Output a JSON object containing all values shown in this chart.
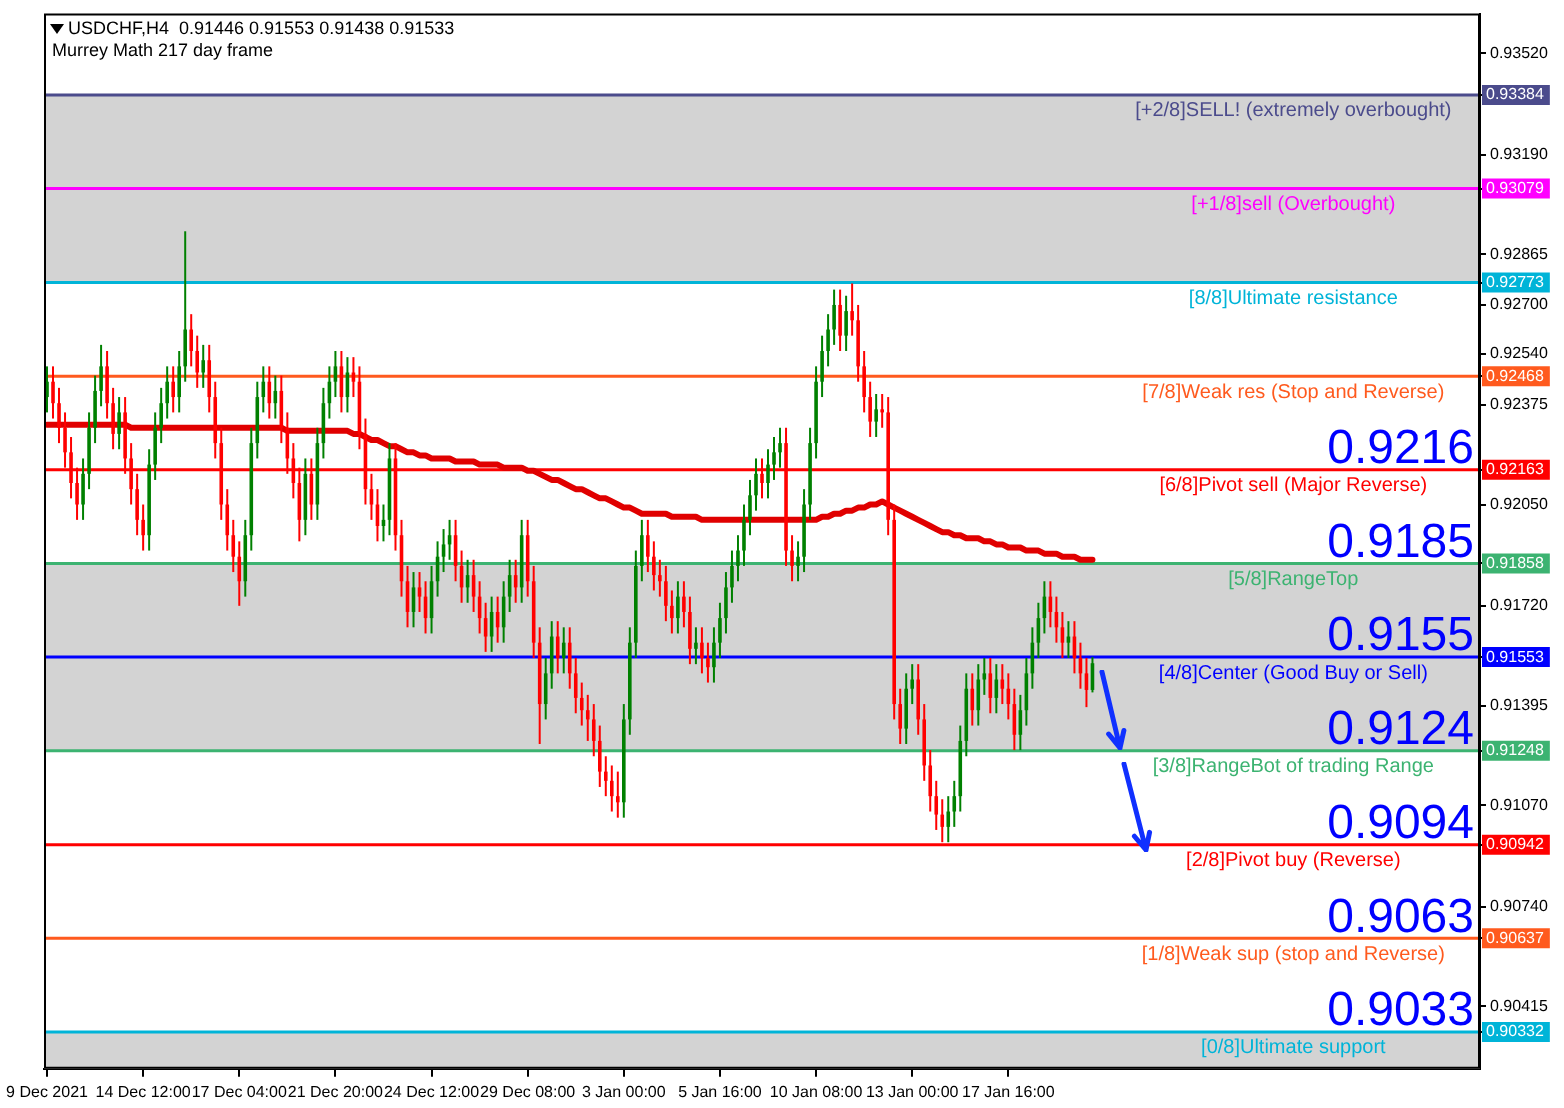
{
  "chart_data": {
    "type": "candlestick",
    "title": "USDCHF,H4  0.91446 0.91553 0.91438 0.91533",
    "subtitle": "Murrey Math 217 day frame",
    "categories": [
      "9 Dec 2021",
      null,
      null,
      null,
      null,
      null,
      null,
      null,
      null,
      null,
      null,
      null,
      null,
      null,
      null,
      null,
      "14 Dec 12:00",
      null,
      null,
      null,
      null,
      null,
      null,
      null,
      null,
      null,
      null,
      null,
      null,
      null,
      null,
      null,
      "17 Dec 04:00",
      null,
      null,
      null,
      null,
      null,
      null,
      null,
      null,
      null,
      null,
      null,
      null,
      null,
      null,
      null,
      "21 Dec 20:00",
      null,
      null,
      null,
      null,
      null,
      null,
      null,
      null,
      null,
      null,
      null,
      null,
      null,
      null,
      null,
      "24 Dec 12:00",
      null,
      null,
      null,
      null,
      null,
      null,
      null,
      null,
      null,
      null,
      null,
      null,
      null,
      null,
      null,
      "29 Dec 08:00",
      null,
      null,
      null,
      null,
      null,
      null,
      null,
      null,
      null,
      null,
      null,
      null,
      null,
      null,
      null,
      "3 Jan 00:00",
      null,
      null,
      null,
      null,
      null,
      null,
      null,
      null,
      null,
      null,
      null,
      null,
      null,
      null,
      null,
      "5 Jan 16:00",
      null,
      null,
      null,
      null,
      null,
      null,
      null,
      null,
      null,
      null,
      null,
      null,
      null,
      null,
      null,
      "10 Jan 08:00",
      null,
      null,
      null,
      null,
      null,
      null,
      null,
      null,
      null,
      null,
      null,
      null,
      null,
      null,
      null,
      "13 Jan 00:00",
      null,
      null,
      null,
      null,
      null,
      null,
      null,
      null,
      null,
      null,
      null,
      null,
      null,
      null,
      null,
      "17 Jan 16:00",
      null,
      null,
      null,
      null,
      null,
      null,
      null,
      null,
      null,
      null,
      null,
      null,
      null,
      null,
      null,
      null,
      null,
      null,
      null,
      null,
      null,
      null,
      null,
      null,
      null,
      null,
      null,
      null,
      null,
      null,
      null,
      null,
      null,
      null,
      null,
      null,
      null,
      null,
      null,
      null,
      null,
      null,
      null,
      null,
      null,
      null,
      null,
      null,
      null,
      null,
      null,
      null,
      null,
      null,
      null,
      null,
      null,
      null,
      null,
      null,
      null,
      null,
      null,
      null,
      null,
      null,
      null,
      null,
      null,
      null,
      null,
      null,
      null,
      null,
      null,
      null,
      null,
      null
    ],
    "ohlc": [
      [
        0.924,
        0.925,
        0.9235,
        0.9245
      ],
      [
        0.9245,
        0.925,
        0.9233,
        0.9238
      ],
      [
        0.9238,
        0.9243,
        0.9225,
        0.923
      ],
      [
        0.923,
        0.9235,
        0.9217,
        0.9222
      ],
      [
        0.9222,
        0.9227,
        0.9207,
        0.9212
      ],
      [
        0.9212,
        0.9217,
        0.92,
        0.9205
      ],
      [
        0.9205,
        0.922,
        0.92,
        0.9215
      ],
      [
        0.9215,
        0.9235,
        0.921,
        0.923
      ],
      [
        0.923,
        0.9247,
        0.9225,
        0.9242
      ],
      [
        0.9242,
        0.9257,
        0.9237,
        0.925
      ],
      [
        0.925,
        0.9255,
        0.9233,
        0.9238
      ],
      [
        0.9238,
        0.9243,
        0.9223,
        0.9228
      ],
      [
        0.9228,
        0.924,
        0.9223,
        0.9235
      ],
      [
        0.9235,
        0.924,
        0.9215,
        0.922
      ],
      [
        0.922,
        0.9225,
        0.9205,
        0.921
      ],
      [
        0.921,
        0.9215,
        0.9195,
        0.92
      ],
      [
        0.92,
        0.9205,
        0.919,
        0.9195
      ],
      [
        0.9195,
        0.9223,
        0.919,
        0.9218
      ],
      [
        0.9218,
        0.9235,
        0.9213,
        0.923
      ],
      [
        0.923,
        0.9243,
        0.9225,
        0.9238
      ],
      [
        0.9238,
        0.925,
        0.9233,
        0.9245
      ],
      [
        0.9245,
        0.925,
        0.9235,
        0.924
      ],
      [
        0.924,
        0.9255,
        0.9235,
        0.925
      ],
      [
        0.925,
        0.9294,
        0.9245,
        0.9262
      ],
      [
        0.9262,
        0.9267,
        0.925,
        0.9255
      ],
      [
        0.9255,
        0.926,
        0.9243,
        0.9248
      ],
      [
        0.9248,
        0.9257,
        0.9243,
        0.9252
      ],
      [
        0.9252,
        0.9257,
        0.9235,
        0.924
      ],
      [
        0.924,
        0.9245,
        0.922,
        0.9225
      ],
      [
        0.9225,
        0.923,
        0.92,
        0.9205
      ],
      [
        0.9205,
        0.921,
        0.919,
        0.9195
      ],
      [
        0.9195,
        0.92,
        0.9183,
        0.9188
      ],
      [
        0.9188,
        0.9193,
        0.9172,
        0.918
      ],
      [
        0.918,
        0.92,
        0.9175,
        0.9195
      ],
      [
        0.9195,
        0.923,
        0.919,
        0.9225
      ],
      [
        0.9225,
        0.9245,
        0.922,
        0.924
      ],
      [
        0.924,
        0.925,
        0.9235,
        0.9245
      ],
      [
        0.9245,
        0.925,
        0.9233,
        0.9238
      ],
      [
        0.9238,
        0.9247,
        0.9233,
        0.9242
      ],
      [
        0.9242,
        0.9247,
        0.9225,
        0.923
      ],
      [
        0.923,
        0.9235,
        0.9215,
        0.922
      ],
      [
        0.922,
        0.9225,
        0.9207,
        0.9212
      ],
      [
        0.9212,
        0.9217,
        0.9193,
        0.92
      ],
      [
        0.92,
        0.922,
        0.9195,
        0.9215
      ],
      [
        0.9215,
        0.922,
        0.92,
        0.9205
      ],
      [
        0.9205,
        0.923,
        0.92,
        0.9225
      ],
      [
        0.9225,
        0.9243,
        0.922,
        0.9238
      ],
      [
        0.9238,
        0.925,
        0.9233,
        0.9245
      ],
      [
        0.9245,
        0.9255,
        0.924,
        0.925
      ],
      [
        0.925,
        0.9255,
        0.9235,
        0.924
      ],
      [
        0.924,
        0.9253,
        0.9235,
        0.9248
      ],
      [
        0.9248,
        0.9253,
        0.924,
        0.9245
      ],
      [
        0.9245,
        0.925,
        0.9223,
        0.9228
      ],
      [
        0.9228,
        0.9233,
        0.9205,
        0.921
      ],
      [
        0.921,
        0.9215,
        0.92,
        0.9205
      ],
      [
        0.9205,
        0.921,
        0.9193,
        0.9198
      ],
      [
        0.9198,
        0.9205,
        0.9193,
        0.92
      ],
      [
        0.92,
        0.9225,
        0.9195,
        0.922
      ],
      [
        0.922,
        0.9225,
        0.919,
        0.9195
      ],
      [
        0.9195,
        0.92,
        0.9175,
        0.918
      ],
      [
        0.918,
        0.9185,
        0.9165,
        0.917
      ],
      [
        0.917,
        0.9183,
        0.9165,
        0.9178
      ],
      [
        0.9178,
        0.9183,
        0.917,
        0.9175
      ],
      [
        0.9175,
        0.918,
        0.9163,
        0.9168
      ],
      [
        0.9168,
        0.9185,
        0.9163,
        0.918
      ],
      [
        0.918,
        0.9193,
        0.9175,
        0.9188
      ],
      [
        0.9188,
        0.9197,
        0.9183,
        0.9192
      ],
      [
        0.9192,
        0.92,
        0.9187,
        0.9195
      ],
      [
        0.9195,
        0.92,
        0.918,
        0.9185
      ],
      [
        0.9185,
        0.919,
        0.9173,
        0.9178
      ],
      [
        0.9178,
        0.9187,
        0.9173,
        0.9182
      ],
      [
        0.9182,
        0.9187,
        0.917,
        0.9175
      ],
      [
        0.9175,
        0.918,
        0.9163,
        0.9168
      ],
      [
        0.9168,
        0.9173,
        0.9157,
        0.9162
      ],
      [
        0.9162,
        0.9175,
        0.9157,
        0.917
      ],
      [
        0.917,
        0.9175,
        0.916,
        0.9165
      ],
      [
        0.9165,
        0.918,
        0.916,
        0.9175
      ],
      [
        0.9175,
        0.9187,
        0.917,
        0.9182
      ],
      [
        0.9182,
        0.9187,
        0.9173,
        0.9178
      ],
      [
        0.9178,
        0.92,
        0.9173,
        0.9195
      ],
      [
        0.9195,
        0.92,
        0.9175,
        0.918
      ],
      [
        0.918,
        0.9185,
        0.9155,
        0.916
      ],
      [
        0.916,
        0.9165,
        0.9127,
        0.914
      ],
      [
        0.914,
        0.9155,
        0.9135,
        0.915
      ],
      [
        0.915,
        0.9167,
        0.9145,
        0.9162
      ],
      [
        0.9162,
        0.9167,
        0.915,
        0.9155
      ],
      [
        0.9155,
        0.9165,
        0.915,
        0.916
      ],
      [
        0.916,
        0.9165,
        0.9145,
        0.915
      ],
      [
        0.915,
        0.9155,
        0.9137,
        0.9142
      ],
      [
        0.9142,
        0.9147,
        0.9133,
        0.9138
      ],
      [
        0.9138,
        0.9143,
        0.9128,
        0.9135
      ],
      [
        0.9135,
        0.914,
        0.9123,
        0.9128
      ],
      [
        0.9128,
        0.9133,
        0.9113,
        0.9118
      ],
      [
        0.9118,
        0.9123,
        0.911,
        0.9115
      ],
      [
        0.9115,
        0.912,
        0.9105,
        0.911
      ],
      [
        0.911,
        0.9118,
        0.9103,
        0.9108
      ],
      [
        0.9108,
        0.914,
        0.9103,
        0.9135
      ],
      [
        0.9135,
        0.9165,
        0.913,
        0.916
      ],
      [
        0.916,
        0.919,
        0.9155,
        0.9185
      ],
      [
        0.9185,
        0.92,
        0.918,
        0.9195
      ],
      [
        0.9195,
        0.92,
        0.9183,
        0.9188
      ],
      [
        0.9188,
        0.9193,
        0.9177,
        0.9182
      ],
      [
        0.9182,
        0.9187,
        0.9175,
        0.918
      ],
      [
        0.918,
        0.9185,
        0.9167,
        0.9172
      ],
      [
        0.9172,
        0.9177,
        0.9163,
        0.9168
      ],
      [
        0.9168,
        0.918,
        0.9163,
        0.9175
      ],
      [
        0.9175,
        0.918,
        0.9165,
        0.917
      ],
      [
        0.917,
        0.9175,
        0.9153,
        0.9158
      ],
      [
        0.9158,
        0.9165,
        0.9153,
        0.916
      ],
      [
        0.916,
        0.9165,
        0.915,
        0.9155
      ],
      [
        0.9155,
        0.916,
        0.9147,
        0.9152
      ],
      [
        0.9152,
        0.9165,
        0.9147,
        0.916
      ],
      [
        0.916,
        0.9173,
        0.9155,
        0.9168
      ],
      [
        0.9168,
        0.9183,
        0.9163,
        0.9178
      ],
      [
        0.9178,
        0.919,
        0.9173,
        0.9185
      ],
      [
        0.9185,
        0.9195,
        0.918,
        0.919
      ],
      [
        0.919,
        0.9205,
        0.9185,
        0.92
      ],
      [
        0.92,
        0.9213,
        0.9195,
        0.9208
      ],
      [
        0.9208,
        0.922,
        0.9203,
        0.9215
      ],
      [
        0.9215,
        0.922,
        0.9207,
        0.9212
      ],
      [
        0.9212,
        0.9223,
        0.9207,
        0.9218
      ],
      [
        0.9218,
        0.9227,
        0.9213,
        0.9222
      ],
      [
        0.9222,
        0.923,
        0.9217,
        0.9225
      ],
      [
        0.9225,
        0.923,
        0.9185,
        0.919
      ],
      [
        0.919,
        0.9195,
        0.918,
        0.9185
      ],
      [
        0.9185,
        0.9193,
        0.918,
        0.9188
      ],
      [
        0.9188,
        0.921,
        0.9183,
        0.9205
      ],
      [
        0.9205,
        0.923,
        0.92,
        0.9225
      ],
      [
        0.9225,
        0.925,
        0.922,
        0.9245
      ],
      [
        0.9245,
        0.926,
        0.924,
        0.9255
      ],
      [
        0.9255,
        0.9267,
        0.925,
        0.9262
      ],
      [
        0.9262,
        0.9275,
        0.9257,
        0.927
      ],
      [
        0.927,
        0.9275,
        0.9255,
        0.926
      ],
      [
        0.926,
        0.9273,
        0.9255,
        0.9268
      ],
      [
        0.9268,
        0.9277,
        0.926,
        0.9265
      ],
      [
        0.9265,
        0.927,
        0.9245,
        0.925
      ],
      [
        0.925,
        0.9255,
        0.9235,
        0.924
      ],
      [
        0.924,
        0.9245,
        0.9227,
        0.9232
      ],
      [
        0.9232,
        0.9241,
        0.9227,
        0.9236
      ],
      [
        0.9236,
        0.9241,
        0.923,
        0.9235
      ],
      [
        0.9235,
        0.924,
        0.9195,
        0.92
      ],
      [
        0.92,
        0.9205,
        0.9135,
        0.914
      ],
      [
        0.914,
        0.9145,
        0.9127,
        0.9132
      ],
      [
        0.9132,
        0.915,
        0.9127,
        0.9145
      ],
      [
        0.9145,
        0.9153,
        0.914,
        0.9148
      ],
      [
        0.9148,
        0.9153,
        0.913,
        0.9135
      ],
      [
        0.9135,
        0.914,
        0.9115,
        0.912
      ],
      [
        0.912,
        0.9125,
        0.9105,
        0.911
      ],
      [
        0.911,
        0.9115,
        0.9099,
        0.9104
      ],
      [
        0.9104,
        0.9109,
        0.9095,
        0.91
      ],
      [
        0.91,
        0.911,
        0.9095,
        0.9105
      ],
      [
        0.9105,
        0.9115,
        0.91,
        0.911
      ],
      [
        0.911,
        0.9133,
        0.9105,
        0.9128
      ],
      [
        0.9128,
        0.915,
        0.9123,
        0.9145
      ],
      [
        0.9145,
        0.915,
        0.9133,
        0.9138
      ],
      [
        0.9138,
        0.9153,
        0.9133,
        0.9148
      ],
      [
        0.9148,
        0.9155,
        0.9143,
        0.915
      ],
      [
        0.915,
        0.9155,
        0.9137,
        0.9142
      ],
      [
        0.9142,
        0.9153,
        0.9137,
        0.9148
      ],
      [
        0.9148,
        0.9153,
        0.914,
        0.9145
      ],
      [
        0.9145,
        0.915,
        0.9135,
        0.914
      ],
      [
        0.914,
        0.9145,
        0.9125,
        0.913
      ],
      [
        0.913,
        0.9143,
        0.9125,
        0.9138
      ],
      [
        0.9138,
        0.9155,
        0.9133,
        0.915
      ],
      [
        0.915,
        0.9165,
        0.9145,
        0.916
      ],
      [
        0.916,
        0.9173,
        0.9155,
        0.9168
      ],
      [
        0.9168,
        0.918,
        0.9163,
        0.9175
      ],
      [
        0.9175,
        0.918,
        0.9165,
        0.917
      ],
      [
        0.917,
        0.9175,
        0.916,
        0.9165
      ],
      [
        0.9165,
        0.917,
        0.9155,
        0.916
      ],
      [
        0.916,
        0.9167,
        0.9155,
        0.9162
      ],
      [
        0.9162,
        0.9167,
        0.915,
        0.9155
      ],
      [
        0.9155,
        0.916,
        0.9145,
        0.915
      ],
      [
        0.915,
        0.9155,
        0.9139,
        0.91446
      ],
      [
        0.91446,
        0.91553,
        0.91438,
        0.91533
      ],
      null,
      null,
      null,
      null,
      null,
      null,
      null,
      null,
      null,
      null,
      null,
      null,
      null,
      null,
      null,
      null,
      null,
      null,
      null,
      null,
      null,
      null,
      null,
      null,
      null,
      null,
      null,
      null,
      null,
      null,
      null,
      null,
      null,
      null,
      null,
      null,
      null,
      null,
      null,
      null,
      null,
      null,
      null,
      null,
      null,
      null,
      null,
      null,
      null,
      null,
      null,
      null,
      null,
      null,
      null,
      null,
      null,
      null,
      null,
      null,
      null,
      null,
      null,
      null
    ],
    "series": [
      {
        "type": "line",
        "color": "#e00000",
        "values": [
          0.9231,
          0.9231,
          0.9231,
          0.9231,
          0.9231,
          0.9231,
          0.9231,
          0.9231,
          0.9231,
          0.9231,
          0.9231,
          0.9231,
          0.9231,
          0.9231,
          0.923,
          0.923,
          0.923,
          0.923,
          0.923,
          0.923,
          0.923,
          0.923,
          0.923,
          0.923,
          0.923,
          0.923,
          0.923,
          0.923,
          0.923,
          0.923,
          0.923,
          0.923,
          0.923,
          0.923,
          0.923,
          0.923,
          0.923,
          0.923,
          0.923,
          0.923,
          0.9229,
          0.9229,
          0.9229,
          0.9229,
          0.9229,
          0.9229,
          0.9229,
          0.9229,
          0.9229,
          0.9229,
          0.9229,
          0.9228,
          0.9228,
          0.9227,
          0.9226,
          0.9226,
          0.9225,
          0.9224,
          0.9224,
          0.9223,
          0.9222,
          0.9222,
          0.9221,
          0.9221,
          0.922,
          0.922,
          0.922,
          0.922,
          0.9219,
          0.9219,
          0.9219,
          0.9219,
          0.9218,
          0.9218,
          0.9218,
          0.9218,
          0.9217,
          0.9217,
          0.9217,
          0.9217,
          0.9216,
          0.9216,
          0.9215,
          0.9214,
          0.9213,
          0.9213,
          0.9212,
          0.9211,
          0.921,
          0.921,
          0.9209,
          0.9208,
          0.9207,
          0.9207,
          0.9206,
          0.9205,
          0.9204,
          0.9204,
          0.9203,
          0.9202,
          0.9202,
          0.9202,
          0.9202,
          0.9202,
          0.9201,
          0.9201,
          0.9201,
          0.9201,
          0.9201,
          0.92,
          0.92,
          0.92,
          0.92,
          0.92,
          0.92,
          0.92,
          0.92,
          0.92,
          0.92,
          0.92,
          0.92,
          0.92,
          0.92,
          0.92,
          0.92,
          0.92,
          0.92,
          0.92,
          0.92,
          0.9201,
          0.9201,
          0.9202,
          0.9202,
          0.9203,
          0.9203,
          0.9204,
          0.9204,
          0.9205,
          0.9205,
          0.9206,
          0.9205,
          0.9204,
          0.9203,
          0.9202,
          0.9201,
          0.92,
          0.9199,
          0.9198,
          0.9197,
          0.9196,
          0.9196,
          0.9195,
          0.9195,
          0.9194,
          0.9194,
          0.9194,
          0.9193,
          0.9193,
          0.9192,
          0.9192,
          0.9191,
          0.9191,
          0.9191,
          0.919,
          0.919,
          0.919,
          0.9189,
          0.9189,
          0.9189,
          0.9188,
          0.9188,
          0.9188,
          0.9187,
          0.9187,
          0.9187,
          null,
          null,
          null,
          null,
          null,
          null,
          null,
          null,
          null,
          null,
          null,
          null,
          null,
          null,
          null,
          null,
          null,
          null,
          null,
          null,
          null,
          null,
          null,
          null,
          null,
          null,
          null,
          null,
          null,
          null,
          null,
          null,
          null,
          null,
          null,
          null,
          null,
          null,
          null,
          null,
          null,
          null,
          null,
          null,
          null,
          null,
          null,
          null,
          null,
          null,
          null,
          null,
          null,
          null,
          null,
          null,
          null,
          null,
          null,
          null,
          null,
          null,
          null,
          null
        ]
      }
    ],
    "ylim": [
      0.90212,
      0.93649
    ],
    "yticks": [
      {
        "value": 0.9352,
        "label": "0.93520"
      },
      {
        "value": 0.93384,
        "label": "0.93384"
      },
      {
        "value": 0.9319,
        "label": "0.93190"
      },
      {
        "value": 0.93079,
        "label": "0.93079"
      },
      {
        "value": 0.92865,
        "label": "0.92865"
      },
      {
        "value": 0.92773,
        "label": "0.92773"
      },
      {
        "value": 0.927,
        "label": "0.92700"
      },
      {
        "value": 0.9254,
        "label": "0.92540"
      },
      {
        "value": 0.92468,
        "label": "0.92468"
      },
      {
        "value": 0.92375,
        "label": "0.92375"
      },
      {
        "value": 0.92163,
        "label": "0.92163"
      },
      {
        "value": 0.9205,
        "label": "0.92050"
      },
      {
        "value": 0.91858,
        "label": "0.91858"
      },
      {
        "value": 0.9172,
        "label": "0.91720"
      },
      {
        "value": 0.91553,
        "label": "0.91553"
      },
      {
        "value": 0.91395,
        "label": "0.91395"
      },
      {
        "value": 0.91248,
        "label": "0.91248"
      },
      {
        "value": 0.9107,
        "label": "0.91070"
      },
      {
        "value": 0.90942,
        "label": "0.90942"
      },
      {
        "value": 0.9074,
        "label": "0.90740"
      },
      {
        "value": 0.90637,
        "label": "0.90637"
      },
      {
        "value": 0.90415,
        "label": "0.90415"
      },
      {
        "value": 0.90332,
        "label": "0.90332"
      }
    ],
    "bands": [
      {
        "axis": "y",
        "from": 0.92773,
        "to": 0.93384,
        "color": "#d3d3d3"
      },
      {
        "axis": "y",
        "from": 0.91248,
        "to": 0.91858,
        "color": "#d3d3d3"
      },
      {
        "axis": "y",
        "from": 0.90212,
        "to": 0.90332,
        "color": "#d3d3d3"
      }
    ],
    "ref_lines": [
      {
        "axis": "y",
        "value": 0.93384,
        "label": "[+2/8]SELL! (extremely overbought)",
        "color": "#4b4b8c"
      },
      {
        "axis": "y",
        "value": 0.93079,
        "label": "[+1/8]sell (Overbought)",
        "color": "#ff00ff"
      },
      {
        "axis": "y",
        "value": 0.92773,
        "label": "[8/8]Ultimate resistance",
        "color": "#00b4d8"
      },
      {
        "axis": "y",
        "value": 0.92468,
        "label": "[7/8]Weak res (Stop and Reverse)",
        "color": "#ff5a1e"
      },
      {
        "axis": "y",
        "value": 0.92163,
        "label": "[6/8]Pivot sell (Major Reverse)",
        "color": "#ff0000"
      },
      {
        "axis": "y",
        "value": 0.91858,
        "label": "[5/8]RangeTop",
        "color": "#3cb371"
      },
      {
        "axis": "y",
        "value": 0.91553,
        "label": "[4/8]Center (Good Buy or Sell)",
        "color": "#0000ff"
      },
      {
        "axis": "y",
        "value": 0.91248,
        "label": "[3/8]RangeBot of trading Range",
        "color": "#3cb371"
      },
      {
        "axis": "y",
        "value": 0.90942,
        "label": "[2/8]Pivot buy (Reverse)",
        "color": "#ff0000"
      },
      {
        "axis": "y",
        "value": 0.90637,
        "label": "[1/8]Weak sup (stop and Reverse)",
        "color": "#ff5a1e"
      },
      {
        "axis": "y",
        "value": 0.90332,
        "label": "[0/8]Ultimate support",
        "color": "#00b4d8"
      }
    ],
    "annotations": [
      {
        "text": "0.9216",
        "y": 0.92163
      },
      {
        "text": "0.9185",
        "y": 0.91858
      },
      {
        "text": "0.9155",
        "y": 0.91553
      },
      {
        "text": "0.9124",
        "y": 0.91248
      },
      {
        "text": "0.9094",
        "y": 0.90942
      },
      {
        "text": "0.9063",
        "y": 0.90637
      },
      {
        "text": "0.9033",
        "y": 0.90332
      }
    ]
  }
}
